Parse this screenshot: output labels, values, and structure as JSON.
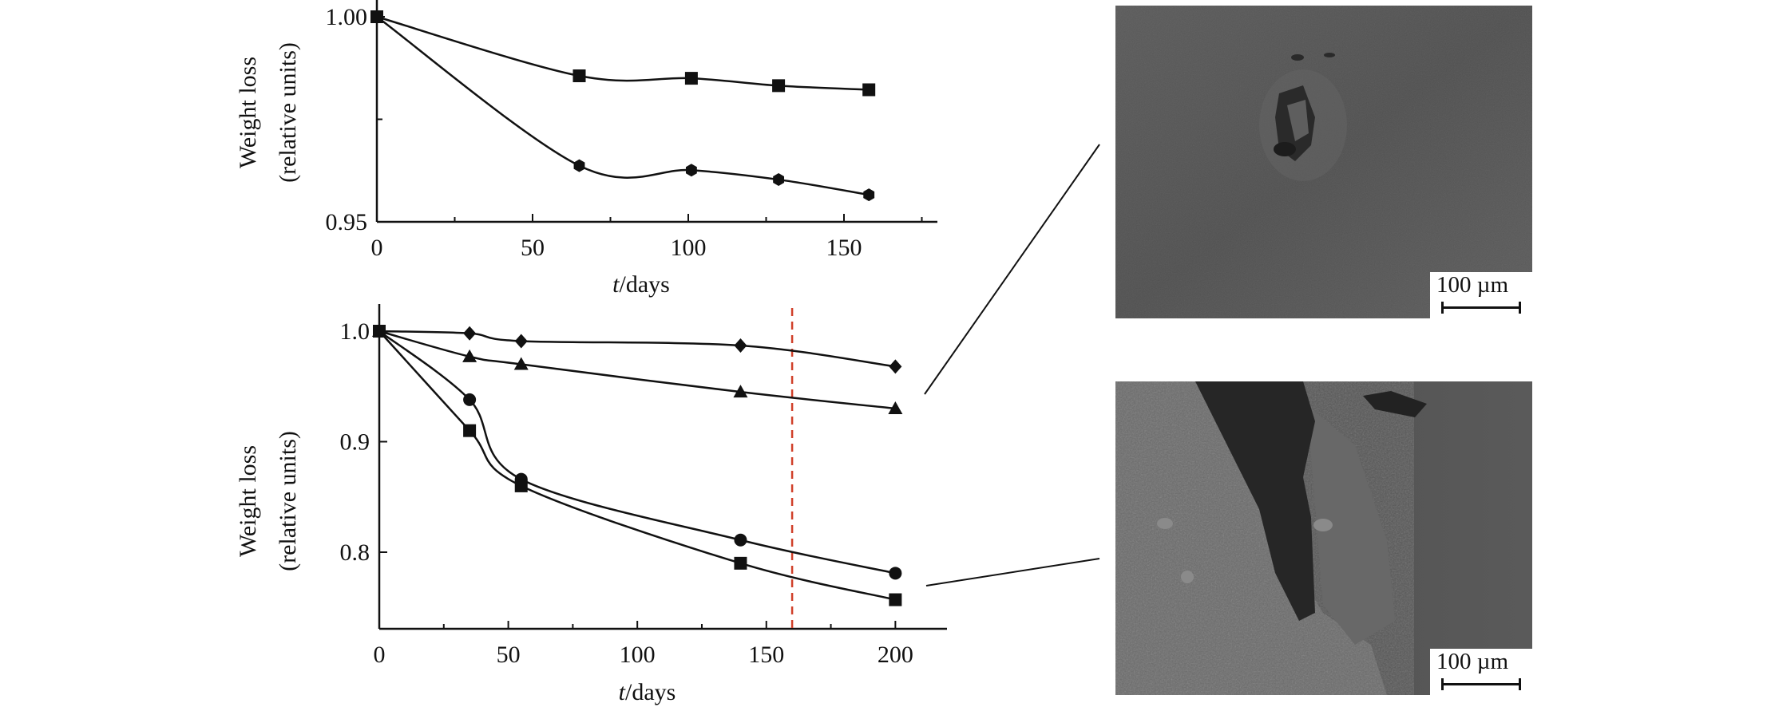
{
  "chart_data": [
    {
      "type": "line",
      "xlabel_italic": "t",
      "xlabel": "/days",
      "ylabel": "Weight loss",
      "ylabel2": "(relative units)",
      "xlim": [
        0,
        180
      ],
      "ylim": [
        0.95,
        1.0
      ],
      "xticks": [
        0,
        50,
        100,
        150
      ],
      "yticks": [
        0.95,
        1.0
      ],
      "ytick_labels": [
        "0.95",
        "1.00"
      ],
      "grid": false,
      "series": [
        {
          "marker": "square",
          "x": [
            0,
            65,
            101,
            129,
            158
          ],
          "y": [
            1.0,
            0.9856,
            0.985,
            0.9832,
            0.9822
          ]
        },
        {
          "marker": "hexagon",
          "x": [
            0,
            65,
            101,
            129,
            158
          ],
          "y": [
            1.0,
            0.9637,
            0.9626,
            0.9603,
            0.9566
          ]
        }
      ]
    },
    {
      "type": "line",
      "xlabel_italic": "t",
      "xlabel": "/days",
      "ylabel": "Weight loss",
      "ylabel2": "(relative units)",
      "xlim": [
        0,
        220
      ],
      "ylim": [
        0.73,
        1.024
      ],
      "xticks": [
        0,
        50,
        100,
        150,
        200
      ],
      "yticks": [
        0.8,
        0.9,
        1.0
      ],
      "ytick_labels": [
        "0.8",
        "0.9",
        "1.0"
      ],
      "grid": false,
      "reference_line": {
        "x": 160,
        "color": "#d0402a",
        "style": "dashed"
      },
      "series": [
        {
          "marker": "diamond",
          "x": [
            0,
            35,
            55,
            140,
            200
          ],
          "y": [
            1.0,
            0.998,
            0.991,
            0.987,
            0.968
          ]
        },
        {
          "marker": "triangle",
          "x": [
            0,
            35,
            55,
            140,
            200
          ],
          "y": [
            1.0,
            0.977,
            0.97,
            0.945,
            0.93
          ]
        },
        {
          "marker": "circle",
          "x": [
            0,
            35,
            55,
            140,
            200
          ],
          "y": [
            1.0,
            0.938,
            0.866,
            0.811,
            0.781
          ]
        },
        {
          "marker": "square",
          "x": [
            0,
            35,
            55,
            140,
            200
          ],
          "y": [
            1.0,
            0.91,
            0.86,
            0.79,
            0.757
          ]
        }
      ]
    }
  ],
  "micrographs": [
    {
      "scale_label": "100 µm"
    },
    {
      "scale_label": "100 µm"
    }
  ]
}
